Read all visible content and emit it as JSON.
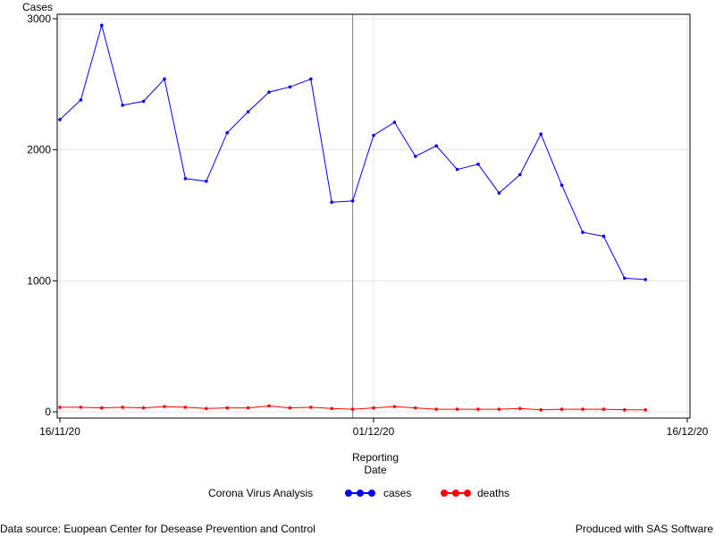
{
  "footer": {
    "left": "Data source: Euopean Center for Desease Prevention and Control",
    "right": "Produced with SAS Software"
  },
  "chart_data": {
    "type": "line",
    "ylabel": "Cases",
    "xlabel_lines": [
      "Reporting",
      "Date"
    ],
    "ylim": [
      0,
      3000
    ],
    "yticks": [
      0,
      1000,
      2000,
      3000
    ],
    "xlim": [
      "2020-11-16",
      "2020-12-16"
    ],
    "xtick_labels": [
      "16/11/20",
      "01/12/20",
      "16/12/20"
    ],
    "xticks": [
      "2020-11-16",
      "2020-12-01",
      "2020-12-16"
    ],
    "reference_line_x": "2020-11-30",
    "legend": {
      "title": "Corona Virus Analysis",
      "placement": "bottom"
    },
    "x": [
      "2020-11-16",
      "2020-11-17",
      "2020-11-18",
      "2020-11-19",
      "2020-11-20",
      "2020-11-21",
      "2020-11-22",
      "2020-11-23",
      "2020-11-24",
      "2020-11-25",
      "2020-11-26",
      "2020-11-27",
      "2020-11-28",
      "2020-11-29",
      "2020-11-30",
      "2020-12-01",
      "2020-12-02",
      "2020-12-03",
      "2020-12-04",
      "2020-12-05",
      "2020-12-06",
      "2020-12-07",
      "2020-12-08",
      "2020-12-09",
      "2020-12-10",
      "2020-12-11",
      "2020-12-12",
      "2020-12-13",
      "2020-12-14"
    ],
    "series": [
      {
        "name": "cases",
        "color": "#0000ff",
        "values": [
          2230,
          2380,
          2950,
          2340,
          2370,
          2540,
          1780,
          1760,
          2130,
          2290,
          2440,
          2480,
          2540,
          1600,
          1610,
          2110,
          2210,
          1950,
          2030,
          1850,
          1890,
          1670,
          1810,
          2120,
          1730,
          1370,
          1340,
          1020,
          1010
        ]
      },
      {
        "name": "deaths",
        "color": "#ff0000",
        "values": [
          35,
          35,
          30,
          35,
          30,
          40,
          35,
          25,
          30,
          30,
          45,
          30,
          35,
          25,
          20,
          30,
          40,
          30,
          20,
          20,
          20,
          20,
          25,
          15,
          20,
          20,
          20,
          15,
          15
        ]
      }
    ]
  }
}
